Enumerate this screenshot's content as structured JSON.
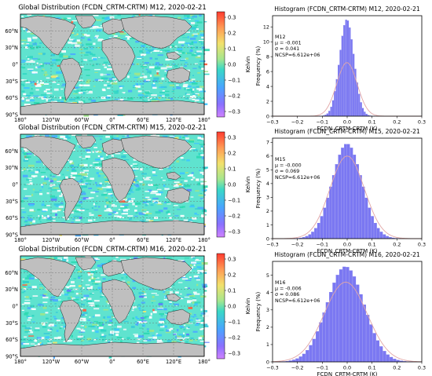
{
  "map_panels": [
    {
      "title": "Global Distribution (FCDN_CRTM-CRTM) M12, 2020-02-21",
      "colorbar": {
        "label": "Kelvin",
        "ticks": [
          "0.3",
          "0.2",
          "0.1",
          "0.0",
          "−0.1",
          "−0.2",
          "−0.3"
        ]
      }
    },
    {
      "title": "Global Distribution (FCDN_CRTM-CRTM) M15, 2020-02-21",
      "colorbar": {
        "label": "Kelvin",
        "ticks": [
          "0.3",
          "0.2",
          "0.1",
          "0.0",
          "−0.1",
          "−0.2",
          "−0.3"
        ]
      }
    },
    {
      "title": "Global Distribution (FCDN_CRTM-CRTM) M16, 2020-02-21",
      "colorbar": {
        "label": "Kelvin",
        "ticks": [
          "0.3",
          "0.2",
          "0.1",
          "0.0",
          "−0.1",
          "−0.2",
          "−0.3"
        ]
      }
    }
  ],
  "map_axis": {
    "lat_ticks": [
      "60°N",
      "30°N",
      "0°",
      "30°S",
      "60°S",
      "90°S"
    ],
    "lon_ticks": [
      "180°",
      "120°W",
      "60°W",
      "0°",
      "60°E",
      "120°E",
      "180°"
    ]
  },
  "colors": {
    "ocean_cyan": "#40e0d0",
    "land_gray": "#bfbfbf",
    "bar_fill": "#7b78f2",
    "fit_curve": "#e2a6a6",
    "colormap": [
      "#ff3b2f",
      "#ffa25a",
      "#f5e56a",
      "#9ee68a",
      "#36d6c8",
      "#4aa8ff",
      "#8470ff",
      "#c77cff"
    ]
  },
  "chart_data": [
    {
      "type": "bar",
      "title": "Histogram (FCDN_CRTM-CRTM) M12, 2020-02-21",
      "xlabel": "FCDN_CRTM-CRTM (K)",
      "ylabel": "Frequency (%)",
      "xlim": [
        -0.3,
        0.3
      ],
      "ylim": [
        0,
        13.5
      ],
      "xticks": [
        "−0.3",
        "−0.2",
        "−0.1",
        "0.0",
        "0.1",
        "0.2",
        "0.3"
      ],
      "yticks": [
        "0",
        "2",
        "4",
        "6",
        "8",
        "10",
        "12"
      ],
      "ytick_values": [
        0,
        2,
        4,
        6,
        8,
        10,
        12
      ],
      "stats": [
        "M12",
        "μ = -0.001",
        "σ = 0.041",
        "NCSP=6.612e+06"
      ],
      "bins": {
        "center": -0.001,
        "width": 0.0075,
        "peak": 13.0,
        "sigma": 0.029,
        "count": 76,
        "start": -0.285
      },
      "fit": {
        "mu": -0.001,
        "sigma": 0.041,
        "peak": 7.2
      }
    },
    {
      "type": "bar",
      "title": "Histogram (FCDN_CRTM-CRTM) M15, 2020-02-21",
      "xlabel": "FCDN_CRTM-CRTM (K)",
      "ylabel": "Frequency (%)",
      "xlim": [
        -0.3,
        0.3
      ],
      "ylim": [
        0,
        7.3
      ],
      "xticks": [
        "−0.3",
        "−0.2",
        "−0.1",
        "0.0",
        "0.1",
        "0.2",
        "0.3"
      ],
      "yticks": [
        "0",
        "1",
        "2",
        "3",
        "4",
        "5",
        "6",
        "7"
      ],
      "ytick_values": [
        0,
        1,
        2,
        3,
        4,
        5,
        6,
        7
      ],
      "stats": [
        "M15",
        "μ = -0.000",
        "σ = 0.069",
        "NCSP=6.612e+06"
      ],
      "bins": {
        "center": 0.0,
        "width": 0.012,
        "peak": 6.9,
        "sigma": 0.06,
        "count": 48,
        "start": -0.288
      },
      "fit": {
        "mu": 0.0,
        "sigma": 0.069,
        "peak": 6.0
      }
    },
    {
      "type": "bar",
      "title": "Histogram (FCDN_CRTM-CRTM) M16, 2020-02-21",
      "xlabel": "FCDN_CRTM-CRTM (K)",
      "ylabel": "Frequency (%)",
      "xlim": [
        -0.3,
        0.3
      ],
      "ylim": [
        0,
        5.8
      ],
      "xticks": [
        "−0.3",
        "−0.2",
        "−0.1",
        "0.0",
        "0.1",
        "0.2",
        "0.3"
      ],
      "yticks": [
        "0",
        "1",
        "2",
        "3",
        "4",
        "5"
      ],
      "ytick_values": [
        0,
        1,
        2,
        3,
        4,
        5
      ],
      "stats": [
        "M16",
        "μ = -0.006",
        "σ = 0.086",
        "NCSP=6.612e+06"
      ],
      "bins": {
        "center": -0.006,
        "width": 0.0135,
        "peak": 5.5,
        "sigma": 0.075,
        "count": 42,
        "start": -0.288
      },
      "fit": {
        "mu": -0.006,
        "sigma": 0.086,
        "peak": 4.6
      }
    }
  ]
}
